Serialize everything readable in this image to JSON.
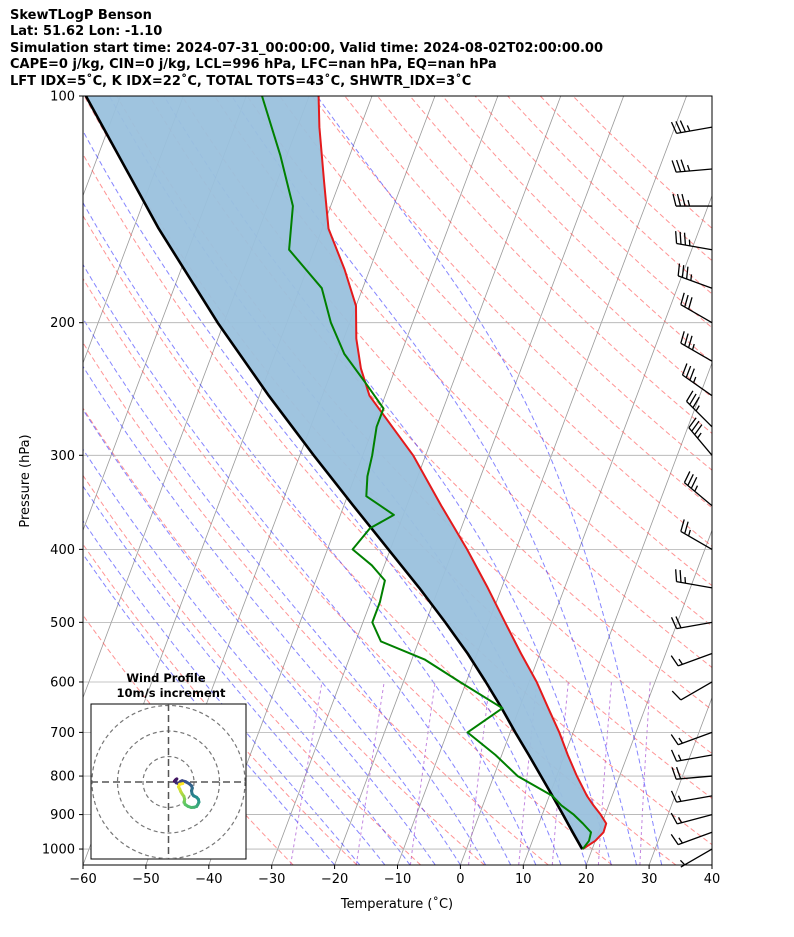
{
  "header": {
    "title": "SkewTLogP Benson",
    "location": "Lat: 51.62   Lon: -1.10",
    "times": "Simulation start time: 2024-07-31_00:00:00, Valid time: 2024-08-02T02:00:00.00",
    "indices_1": "CAPE=0 j/kg, CIN=0 j/kg, LCL=996 hPa, LFC=nan hPa, EQ=nan hPa",
    "indices_2": "LFT IDX=5$^\\circ$C, K IDX=22$^\\circ$C, TOTAL TOTS=43$^\\circ$C, SHWTR_IDX=3$^\\circ$C"
  },
  "chart_data": {
    "type": "line",
    "xlabel": "Temperature ($^\\circ$C)",
    "ylabel": "Pressure (hPa)",
    "xlim": [
      -60,
      40
    ],
    "ylim": [
      1050,
      100
    ],
    "y_scale": "log",
    "grid": true,
    "x_ticks": [
      -60,
      -50,
      -40,
      -30,
      -20,
      -10,
      0,
      10,
      20,
      30,
      40
    ],
    "y_ticks": [
      100,
      200,
      300,
      400,
      500,
      600,
      700,
      800,
      900,
      1000
    ],
    "skew_deg_per_decade": 45,
    "colors": {
      "temperature": "#e41a1c",
      "dewpoint": "#008000",
      "parcel": "#000000",
      "cin_shading": "#9ac1dd",
      "dry_adiabat": "#ff4d4d",
      "moist_adiabat": "#3333ff",
      "mixing_ratio": "#9933cc",
      "isotherm": "#999999"
    },
    "series": [
      {
        "role": "temperature",
        "p": [
          1000,
          975,
          950,
          925,
          900,
          875,
          850,
          800,
          750,
          700,
          650,
          600,
          550,
          500,
          450,
          400,
          350,
          300,
          250,
          230,
          210,
          190,
          170,
          150,
          130,
          110,
          100
        ],
        "t": [
          18.5,
          20.0,
          20.8,
          20.7,
          19.3,
          17.6,
          16.0,
          13.2,
          10.5,
          7.8,
          4.6,
          1.2,
          -3.0,
          -7.4,
          -12.2,
          -17.8,
          -24.5,
          -32.0,
          -42.5,
          -45.5,
          -48.0,
          -50.0,
          -54.0,
          -59.0,
          -62.5,
          -66.5,
          -68.5
        ]
      },
      {
        "role": "dewpoint",
        "p": [
          1000,
          975,
          950,
          925,
          900,
          875,
          850,
          800,
          750,
          700,
          650,
          600,
          560,
          530,
          500,
          470,
          440,
          420,
          400,
          375,
          360,
          340,
          320,
          300,
          275,
          260,
          240,
          220,
          200,
          180,
          160,
          140,
          120,
          100
        ],
        "t": [
          18.5,
          19.0,
          18.8,
          17.0,
          15.0,
          12.5,
          10.5,
          3.8,
          -1.0,
          -6.8,
          -2.7,
          -11.0,
          -18.0,
          -26.0,
          -28.5,
          -28.5,
          -29.0,
          -32.0,
          -36.0,
          -34.5,
          -31.5,
          -37.0,
          -38.0,
          -38.5,
          -39.5,
          -39.5,
          -44.0,
          -49.0,
          -53.0,
          -56.5,
          -64.0,
          -66.0,
          -71.0,
          -77.5
        ]
      },
      {
        "role": "parcel",
        "p": [
          1000,
          996,
          950,
          900,
          850,
          800,
          750,
          700,
          650,
          600,
          550,
          500,
          450,
          400,
          350,
          300,
          250,
          200,
          150,
          100
        ],
        "t": [
          18.5,
          18.2,
          15.9,
          13.3,
          10.5,
          7.5,
          4.3,
          0.8,
          -2.8,
          -6.9,
          -11.5,
          -16.9,
          -23.1,
          -30.3,
          -38.5,
          -47.8,
          -58.5,
          -71.0,
          -86.0,
          -105.5
        ]
      }
    ],
    "wind_barbs": {
      "p": [
        1000,
        950,
        900,
        850,
        800,
        750,
        700,
        600,
        550,
        500,
        450,
        400,
        350,
        300,
        275,
        250,
        225,
        200,
        180,
        160,
        140,
        125,
        110
      ],
      "speed_ms": [
        3,
        7,
        8,
        9,
        10,
        9,
        8,
        6,
        8,
        10,
        12,
        14,
        17,
        19,
        18,
        17,
        17,
        16,
        17,
        17,
        18,
        18,
        17
      ],
      "dir_deg": [
        240,
        250,
        255,
        260,
        265,
        260,
        250,
        240,
        250,
        260,
        280,
        300,
        310,
        320,
        315,
        305,
        300,
        300,
        290,
        280,
        270,
        265,
        260
      ]
    },
    "inset": {
      "title": "Wind Profile",
      "subtitle": "10m/s increment",
      "rings": [
        10,
        20,
        30
      ],
      "hodograph_u": [
        -1.2,
        -0.8,
        -0.3,
        -0.8,
        -0.5,
        0.3,
        1.2,
        1.8,
        3.2,
        4.5,
        5.5,
        5.8,
        5.5,
        5.7,
        6.3,
        7.5,
        8.2,
        8.4,
        8.0,
        7.5,
        6.6,
        5.4,
        4.2,
        3.0,
        2.6,
        2.8,
        2.5,
        1.9,
        1.3,
        0.9,
        0.4,
        0.8,
        2.1
      ],
      "hodograph_v": [
        0.3,
        0.8,
        1.2,
        0.4,
        -0.3,
        -0.6,
        0.2,
        0.5,
        0.1,
        -0.6,
        -1.5,
        -2.4,
        -3.4,
        -4.6,
        -5.4,
        -6.0,
        -6.8,
        -7.9,
        -8.8,
        -9.6,
        -9.9,
        -10.0,
        -9.6,
        -8.8,
        -7.8,
        -6.8,
        -5.6,
        -4.8,
        -3.8,
        -2.8,
        -1.9,
        -0.9,
        -0.6
      ]
    }
  }
}
